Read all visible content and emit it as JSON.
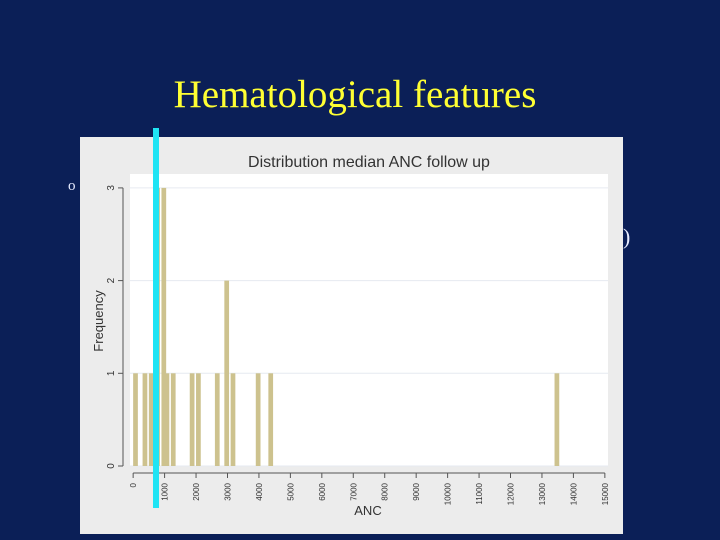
{
  "slide": {
    "title": "Hematological features",
    "left_fragment": "o",
    "right_fragment": "1)"
  },
  "colors": {
    "background": "#0b1f57",
    "title": "#ffff33",
    "bar": "#cdc28e",
    "marker": "#1fe4f4"
  },
  "chart_data": {
    "type": "bar",
    "title": "Distribution median ANC follow up",
    "xlabel": "ANC",
    "ylabel": "Frequency",
    "xlim": [
      -100,
      15100
    ],
    "ylim": [
      0,
      3.15
    ],
    "x_ticks": [
      0,
      1000,
      2000,
      3000,
      4000,
      5000,
      6000,
      7000,
      8000,
      9000,
      10000,
      11000,
      12000,
      13000,
      14000,
      15000
    ],
    "x_tick_labels": [
      "0",
      "1000",
      "2000",
      "3000",
      "4000",
      "5000",
      "6000",
      "7000",
      "8000",
      "9000",
      "10000",
      "11000",
      "12000",
      "13000",
      "14000",
      "15000"
    ],
    "y_ticks": [
      0,
      1,
      2,
      3
    ],
    "y_tick_labels": [
      "0",
      "1",
      "2",
      "3"
    ],
    "bar_width": 150,
    "grid": true,
    "bars": [
      {
        "x": 0,
        "value": 1
      },
      {
        "x": 300,
        "value": 1
      },
      {
        "x": 500,
        "value": 1
      },
      {
        "x": 700,
        "value": 3
      },
      {
        "x": 900,
        "value": 3
      },
      {
        "x": 1000,
        "value": 1
      },
      {
        "x": 1200,
        "value": 1
      },
      {
        "x": 1800,
        "value": 1
      },
      {
        "x": 2000,
        "value": 1
      },
      {
        "x": 2600,
        "value": 1
      },
      {
        "x": 2900,
        "value": 2
      },
      {
        "x": 3100,
        "value": 1
      },
      {
        "x": 3900,
        "value": 1
      },
      {
        "x": 4300,
        "value": 1
      },
      {
        "x": 13400,
        "value": 1
      }
    ],
    "highlight_x": 500
  }
}
